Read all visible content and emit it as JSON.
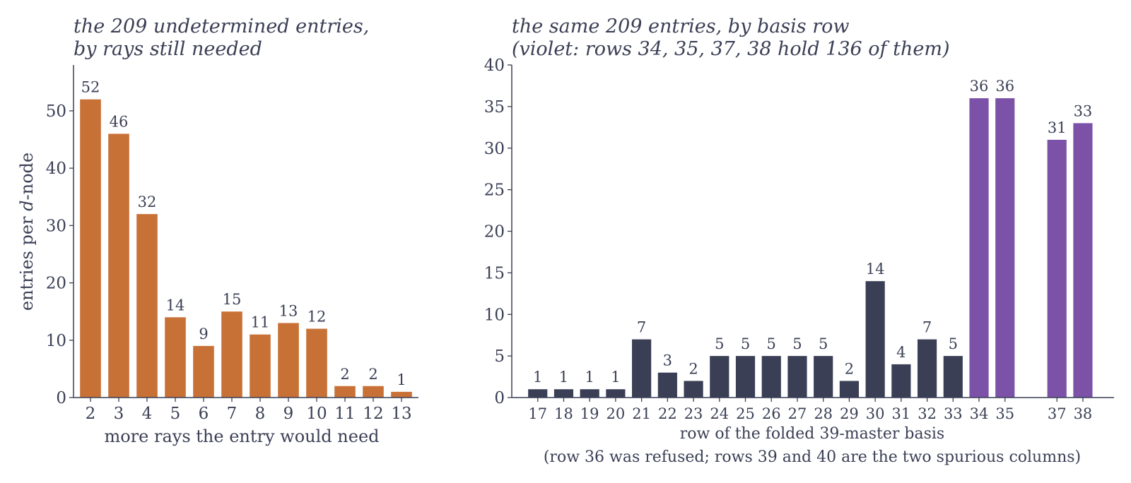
{
  "colors": {
    "text": "#3a3f55",
    "orange": "#c87137",
    "navy": "#3a3f55",
    "violet": "#7b52a8"
  },
  "chart_data": [
    {
      "type": "bar",
      "title_line1": "the 209 undetermined entries,",
      "title_line2": "by rays still needed",
      "xlabel": "more rays the entry would need",
      "ylabel_pre": "entries per ",
      "ylabel_var": "d",
      "ylabel_post": "-node",
      "categories": [
        "2",
        "3",
        "4",
        "5",
        "6",
        "7",
        "8",
        "9",
        "10",
        "11",
        "12",
        "13"
      ],
      "values": [
        52,
        46,
        32,
        14,
        9,
        15,
        11,
        13,
        12,
        2,
        2,
        1
      ],
      "yticks": [
        0,
        10,
        20,
        30,
        40,
        50
      ],
      "ylim": [
        0,
        58
      ],
      "grid": false,
      "color": "orange"
    },
    {
      "type": "bar",
      "title_line1": "the same 209 entries, by basis row",
      "title_line2": "(violet: rows 34, 35, 37, 38 hold 136 of them)",
      "xlabel_line1": "row of the folded 39-master basis",
      "xlabel_line2": "(row 36 was refused; rows 39 and 40 are the two spurious columns)",
      "x": [
        17,
        18,
        19,
        20,
        21,
        22,
        23,
        24,
        25,
        26,
        27,
        28,
        29,
        30,
        31,
        32,
        33,
        34,
        35,
        37,
        38
      ],
      "values": [
        1,
        1,
        1,
        1,
        7,
        3,
        2,
        5,
        5,
        5,
        5,
        5,
        2,
        14,
        4,
        7,
        5,
        36,
        36,
        31,
        33
      ],
      "highlight": [
        34,
        35,
        37,
        38
      ],
      "yticks": [
        0,
        5,
        10,
        15,
        20,
        25,
        30,
        35,
        40
      ],
      "ylim": [
        0,
        40
      ],
      "xlim": [
        16,
        39.2
      ],
      "grid": false,
      "color": "navy",
      "highlight_color": "violet"
    }
  ]
}
